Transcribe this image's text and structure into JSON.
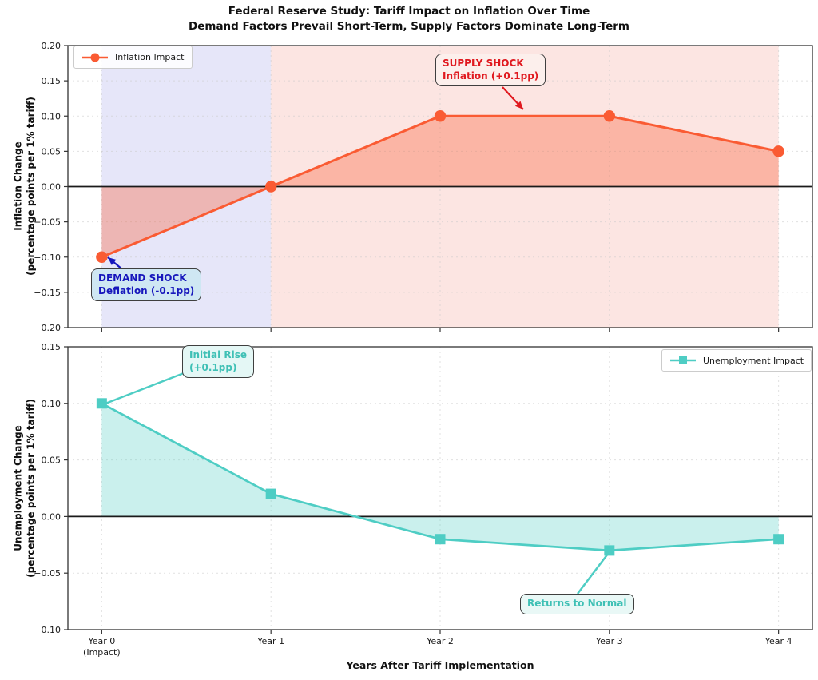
{
  "title": {
    "line1": "Federal Reserve Study: Tariff Impact on Inflation Over Time",
    "line2": "Demand Factors Prevail Short-Term, Supply Factors Dominate Long-Term"
  },
  "xlabel": "Years After Tariff Implementation",
  "x_categories": [
    "Year 0 (Impact)",
    "Year 1",
    "Year 2",
    "Year 3",
    "Year 4"
  ],
  "xtick_lines": [
    [
      "Year 0",
      "(Impact)"
    ],
    [
      "Year 1"
    ],
    [
      "Year 2"
    ],
    [
      "Year 3"
    ],
    [
      "Year 4"
    ]
  ],
  "chart_data": [
    {
      "type": "line",
      "panel": "inflation",
      "legend_label": "Inflation Impact",
      "x": [
        0,
        1,
        2,
        3,
        4
      ],
      "values": [
        -0.1,
        0.0,
        0.1,
        0.1,
        0.05
      ],
      "ylabel_line1": "Inflation Change",
      "ylabel_line2": "(percentage points per 1% tariff)",
      "ylim": [
        -0.2,
        0.2
      ],
      "yticks": [
        {
          "v": 0.2,
          "label": "0.20"
        },
        {
          "v": 0.15,
          "label": "0.15"
        },
        {
          "v": 0.1,
          "label": "0.10"
        },
        {
          "v": 0.05,
          "label": "0.05"
        },
        {
          "v": 0.0,
          "label": "0.00"
        },
        {
          "v": -0.05,
          "label": "−0.05"
        },
        {
          "v": -0.1,
          "label": "−0.10"
        },
        {
          "v": -0.15,
          "label": "−0.15"
        },
        {
          "v": -0.2,
          "label": "−0.20"
        }
      ],
      "line_color": "#FA5B33",
      "fill_opacity": 0.35,
      "marker": "circle",
      "zero_line": true,
      "grid": true,
      "legend_position": "upper-left",
      "spans": [
        {
          "x_from": 0,
          "x_to": 1,
          "color": "#6A6ADE",
          "opacity": 0.17,
          "meaning": "demand-shock period"
        },
        {
          "x_from": 1,
          "x_to": 4,
          "color": "#EE7060",
          "opacity": 0.18,
          "meaning": "supply-shock period"
        }
      ],
      "annotations": [
        {
          "id": "supply-shock",
          "line1": "SUPPLY SHOCK",
          "line2": "Inflation (+0.1pp)",
          "points_to": {
            "x": 2,
            "note": "arrow to flat +0.10 segment"
          },
          "text_color": "#E0191F",
          "bg": "#FCEFEC",
          "arrow_color": "#E0191F"
        },
        {
          "id": "demand-shock",
          "line1": "DEMAND SHOCK",
          "line2": "Deflation (-0.1pp)",
          "points_to": {
            "x": 0,
            "value": -0.1
          },
          "text_color": "#1717BC",
          "bg": "#CFE7F3",
          "arrow_color": "#1717BC"
        }
      ]
    },
    {
      "type": "line",
      "panel": "unemployment",
      "legend_label": "Unemployment Impact",
      "x": [
        0,
        1,
        2,
        3,
        4
      ],
      "values": [
        0.1,
        0.02,
        -0.02,
        -0.03,
        -0.02
      ],
      "ylabel_line1": "Unemployment Change",
      "ylabel_line2": "(percentage points per 1% tariff)",
      "ylim": [
        -0.1,
        0.15
      ],
      "yticks": [
        {
          "v": 0.15,
          "label": "0.15"
        },
        {
          "v": 0.1,
          "label": "0.10"
        },
        {
          "v": 0.05,
          "label": "0.05"
        },
        {
          "v": 0.0,
          "label": "0.00"
        },
        {
          "v": -0.05,
          "label": "−0.05"
        },
        {
          "v": -0.1,
          "label": "−0.10"
        }
      ],
      "line_color": "#4ECDC4",
      "fill_opacity": 0.3,
      "marker": "square",
      "zero_line": true,
      "grid": true,
      "legend_position": "upper-right",
      "spans": [],
      "annotations": [
        {
          "id": "initial-rise",
          "line1": "Initial Rise",
          "line2": "(+0.1pp)",
          "points_to": {
            "x": 0,
            "value": 0.1
          },
          "text_color": "#3FC0B5",
          "bg": "#E4F7F5",
          "arrow_color": "#4ECDC4"
        },
        {
          "id": "returns-to-normal",
          "line1": "Returns to Normal",
          "points_to": {
            "x": 3,
            "value": -0.03
          },
          "text_color": "#3FC0B5",
          "bg": "#E9F8F6",
          "arrow_color": "#4ECDC4"
        }
      ]
    }
  ]
}
